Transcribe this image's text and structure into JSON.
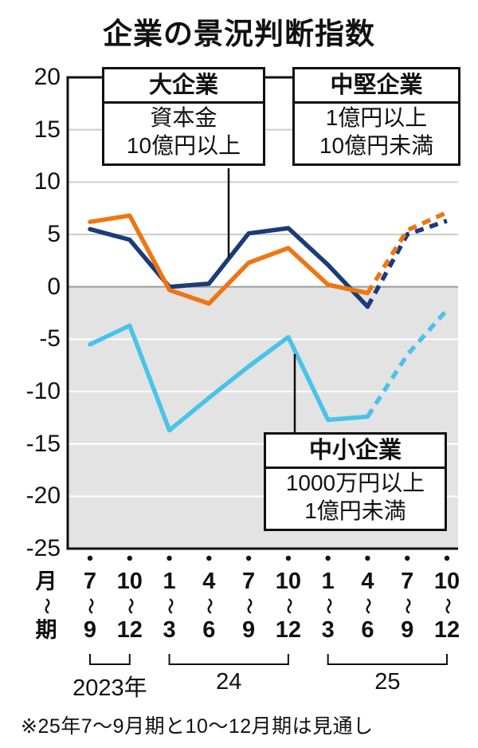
{
  "title": "企業の景況判断指数",
  "footnote": "※25年7〜9月期と10〜12月期は見通し",
  "chart_data": {
    "type": "line",
    "title": "企業の景況判断指数",
    "ylim": [
      -25,
      20
    ],
    "y_ticks": [
      20,
      15,
      10,
      5,
      0,
      -5,
      -10,
      -15,
      -20,
      -25
    ],
    "grid": true,
    "negative_region_shaded": true,
    "negative_shade_color": "#e3e3e3",
    "forecast_from_index": 7,
    "x_axis": {
      "unit_top": "月",
      "unit_tilde": "〜",
      "unit_bottom": "期",
      "period_start": [
        "7",
        "10",
        "1",
        "4",
        "7",
        "10",
        "1",
        "4",
        "7",
        "10"
      ],
      "period_end": [
        "9",
        "12",
        "3",
        "6",
        "9",
        "12",
        "3",
        "6",
        "9",
        "12"
      ],
      "year_groups": [
        {
          "label": "2023年",
          "from": 0,
          "to": 1
        },
        {
          "label": "24",
          "from": 2,
          "to": 5
        },
        {
          "label": "25",
          "from": 6,
          "to": 9
        }
      ]
    },
    "series": [
      {
        "name": "大企業",
        "color": "#1b3c78",
        "values": [
          5.5,
          4.5,
          0.0,
          0.3,
          5.1,
          5.6,
          2.1,
          -1.9,
          5.0,
          6.3
        ]
      },
      {
        "name": "中堅企業",
        "color": "#ee7611",
        "values": [
          6.2,
          6.8,
          -0.3,
          -1.6,
          2.3,
          3.7,
          0.2,
          -0.6,
          5.4,
          7.1
        ]
      },
      {
        "name": "中小企業",
        "color": "#49c3ea",
        "values": [
          -5.5,
          -3.7,
          -13.7,
          -10.6,
          -7.6,
          -4.8,
          -12.7,
          -12.4,
          -6.5,
          -2.2
        ]
      }
    ]
  },
  "annotations": [
    {
      "title": "大企業",
      "lines": [
        "資本金",
        "10億円以上"
      ]
    },
    {
      "title": "中堅企業",
      "lines": [
        "1億円以上",
        "10億円未満"
      ]
    },
    {
      "title": "中小企業",
      "lines": [
        "1000万円以上",
        "1億円未満"
      ]
    }
  ]
}
